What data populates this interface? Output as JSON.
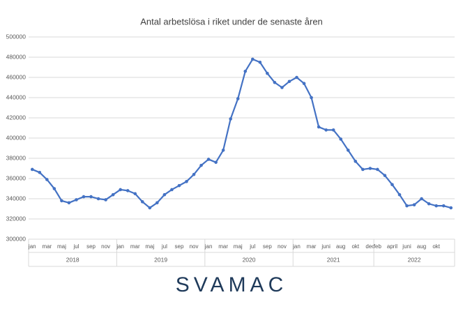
{
  "chart_data": {
    "type": "line",
    "title": "Antal arbetslösa i riket under de senaste åren",
    "groups": [
      {
        "label": "2018",
        "categories": [
          "jan",
          null,
          "mar",
          null,
          "maj",
          null,
          "jul",
          null,
          "sep",
          null,
          "nov",
          null
        ]
      },
      {
        "label": "2019",
        "categories": [
          "jan",
          null,
          "mar",
          null,
          "maj",
          null,
          "jul",
          null,
          "sep",
          null,
          "nov",
          null
        ]
      },
      {
        "label": "2020",
        "categories": [
          "jan",
          null,
          "mar",
          null,
          "maj",
          null,
          "jul",
          null,
          "sep",
          null,
          "nov",
          null
        ]
      },
      {
        "label": "2021",
        "categories": [
          "jan",
          null,
          "mar",
          null,
          "juni",
          null,
          "aug",
          null,
          "okt",
          null,
          "dec"
        ]
      },
      {
        "label": "2022",
        "categories": [
          "feb",
          null,
          "april",
          null,
          "juni",
          null,
          "aug",
          null,
          "okt",
          null,
          null
        ]
      }
    ],
    "values": [
      369000,
      366000,
      359000,
      350000,
      338000,
      336000,
      339000,
      342000,
      342000,
      340000,
      339000,
      344000,
      349000,
      348000,
      345000,
      337000,
      331000,
      336000,
      344000,
      349000,
      353000,
      357000,
      364000,
      373000,
      379000,
      376000,
      388000,
      419000,
      439000,
      466000,
      478000,
      475000,
      464000,
      455000,
      450000,
      456000,
      460000,
      454000,
      440000,
      411000,
      408000,
      408000,
      399000,
      388000,
      377000,
      369000,
      370000,
      369000,
      363000,
      354000,
      344000,
      333000,
      334000,
      340000,
      335000,
      333000,
      333000,
      331000
    ],
    "color": "#4472c4",
    "ylim": [
      300000,
      500000
    ],
    "yticks": [
      300000,
      320000,
      340000,
      360000,
      380000,
      400000,
      420000,
      440000,
      460000,
      480000,
      500000
    ],
    "grid": true,
    "logo": "SVAMAC"
  }
}
